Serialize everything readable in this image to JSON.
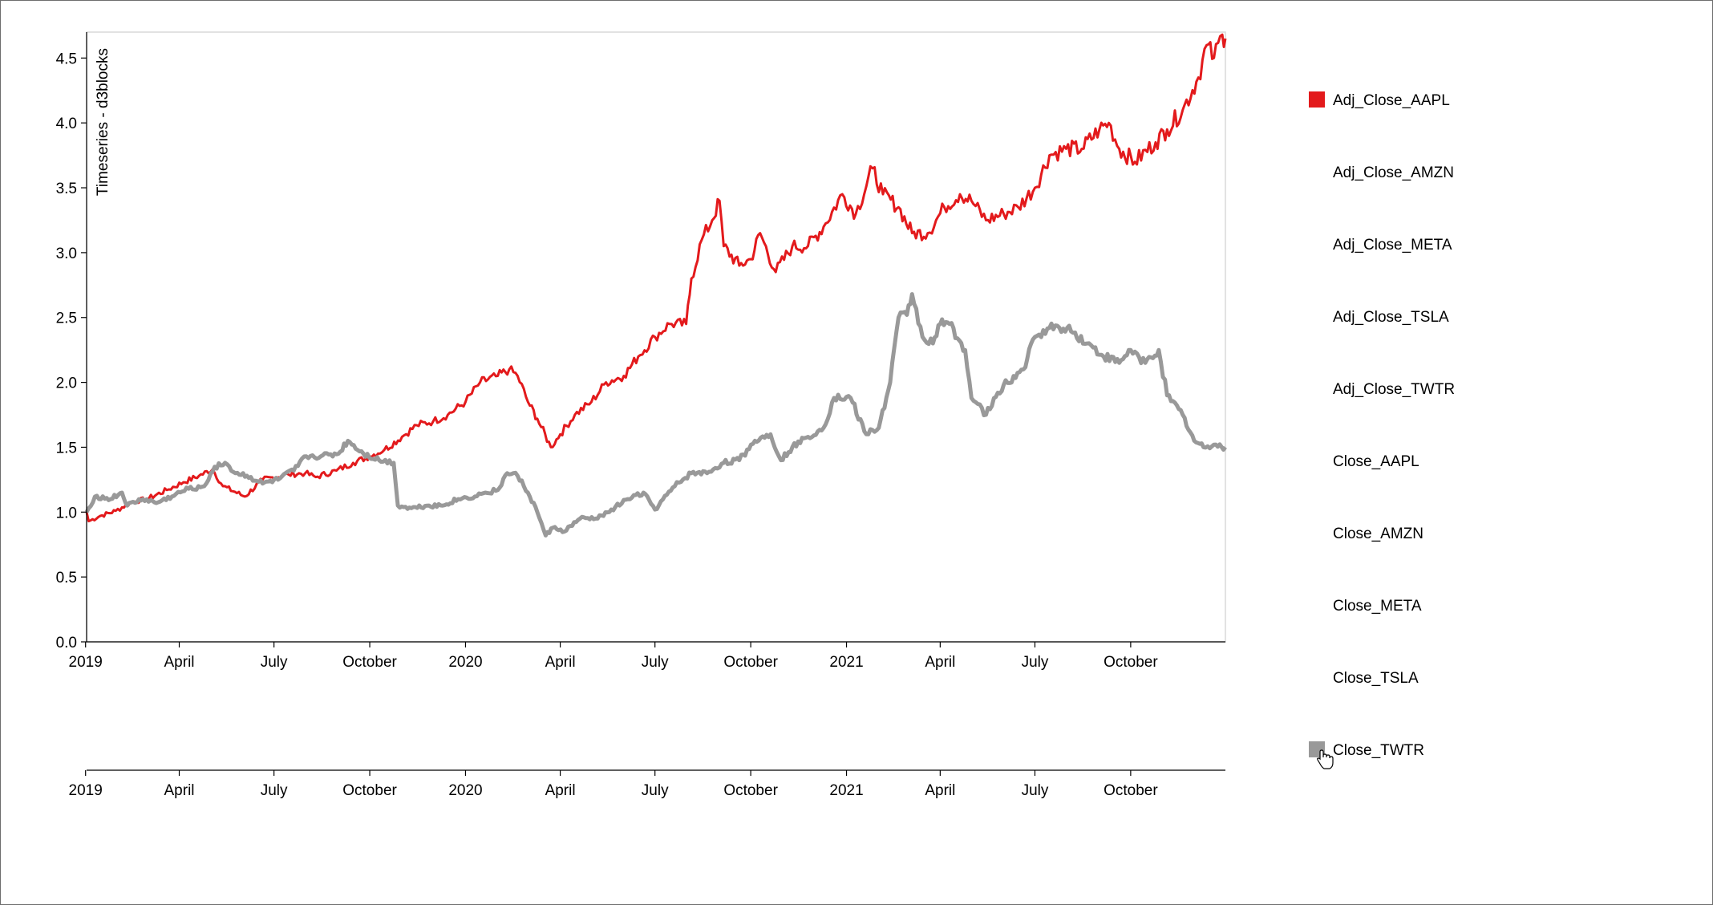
{
  "chart_data": {
    "type": "line",
    "title": "",
    "ylabel": "Timeseries - d3blocks",
    "xlabel": "",
    "x_range": [
      "2019-01-02",
      "2021-12-31"
    ],
    "ylim": [
      0,
      4.7
    ],
    "y_ticks": [
      "0.0",
      "0.5",
      "1.0",
      "1.5",
      "2.0",
      "2.5",
      "3.0",
      "3.5",
      "4.0",
      "4.5"
    ],
    "x_ticks": [
      {
        "date": "2019-01-01",
        "label": "2019"
      },
      {
        "date": "2019-04-01",
        "label": "April"
      },
      {
        "date": "2019-07-01",
        "label": "July"
      },
      {
        "date": "2019-10-01",
        "label": "October"
      },
      {
        "date": "2020-01-01",
        "label": "2020"
      },
      {
        "date": "2020-04-01",
        "label": "April"
      },
      {
        "date": "2020-07-01",
        "label": "July"
      },
      {
        "date": "2020-10-01",
        "label": "October"
      },
      {
        "date": "2021-01-01",
        "label": "2021"
      },
      {
        "date": "2021-04-01",
        "label": "April"
      },
      {
        "date": "2021-07-01",
        "label": "July"
      },
      {
        "date": "2021-10-01",
        "label": "October"
      }
    ],
    "grid": false,
    "legend_placement": "right",
    "series": [
      {
        "name": "Adj_Close_AAPL",
        "color": "#e31a1c",
        "visible": true,
        "points": [
          [
            "2019-01-02",
            1.0
          ],
          [
            "2019-01-04",
            0.93
          ],
          [
            "2019-01-15",
            0.97
          ],
          [
            "2019-01-30",
            1.01
          ],
          [
            "2019-02-15",
            1.08
          ],
          [
            "2019-03-01",
            1.1
          ],
          [
            "2019-03-20",
            1.17
          ],
          [
            "2019-04-05",
            1.23
          ],
          [
            "2019-04-20",
            1.28
          ],
          [
            "2019-05-03",
            1.33
          ],
          [
            "2019-05-13",
            1.2
          ],
          [
            "2019-06-03",
            1.12
          ],
          [
            "2019-06-20",
            1.25
          ],
          [
            "2019-07-15",
            1.29
          ],
          [
            "2019-07-31",
            1.3
          ],
          [
            "2019-08-10",
            1.27
          ],
          [
            "2019-08-30",
            1.32
          ],
          [
            "2019-09-15",
            1.38
          ],
          [
            "2019-10-01",
            1.43
          ],
          [
            "2019-10-15",
            1.48
          ],
          [
            "2019-11-01",
            1.58
          ],
          [
            "2019-11-15",
            1.67
          ],
          [
            "2019-12-01",
            1.7
          ],
          [
            "2019-12-15",
            1.75
          ],
          [
            "2020-01-01",
            1.85
          ],
          [
            "2020-01-15",
            2.0
          ],
          [
            "2020-02-01",
            2.05
          ],
          [
            "2020-02-12",
            2.1
          ],
          [
            "2020-02-20",
            2.05
          ],
          [
            "2020-03-01",
            1.85
          ],
          [
            "2020-03-10",
            1.72
          ],
          [
            "2020-03-23",
            1.5
          ],
          [
            "2020-04-01",
            1.6
          ],
          [
            "2020-04-15",
            1.75
          ],
          [
            "2020-05-01",
            1.85
          ],
          [
            "2020-05-15",
            2.0
          ],
          [
            "2020-06-01",
            2.05
          ],
          [
            "2020-06-15",
            2.2
          ],
          [
            "2020-07-01",
            2.35
          ],
          [
            "2020-07-15",
            2.45
          ],
          [
            "2020-07-31",
            2.45
          ],
          [
            "2020-08-05",
            2.8
          ],
          [
            "2020-08-15",
            3.1
          ],
          [
            "2020-08-25",
            3.25
          ],
          [
            "2020-09-01",
            3.4
          ],
          [
            "2020-09-05",
            3.05
          ],
          [
            "2020-09-20",
            2.9
          ],
          [
            "2020-10-01",
            2.95
          ],
          [
            "2020-10-10",
            3.15
          ],
          [
            "2020-10-25",
            2.85
          ],
          [
            "2020-11-10",
            3.05
          ],
          [
            "2020-11-25",
            3.05
          ],
          [
            "2020-12-10",
            3.2
          ],
          [
            "2020-12-28",
            3.45
          ],
          [
            "2021-01-10",
            3.3
          ],
          [
            "2021-01-26",
            3.65
          ],
          [
            "2021-02-05",
            3.45
          ],
          [
            "2021-02-20",
            3.35
          ],
          [
            "2021-03-05",
            3.15
          ],
          [
            "2021-03-20",
            3.15
          ],
          [
            "2021-04-05",
            3.35
          ],
          [
            "2021-04-20",
            3.45
          ],
          [
            "2021-05-01",
            3.4
          ],
          [
            "2021-05-15",
            3.25
          ],
          [
            "2021-06-01",
            3.3
          ],
          [
            "2021-06-15",
            3.35
          ],
          [
            "2021-07-01",
            3.5
          ],
          [
            "2021-07-15",
            3.75
          ],
          [
            "2021-07-31",
            3.8
          ],
          [
            "2021-08-15",
            3.8
          ],
          [
            "2021-09-01",
            3.95
          ],
          [
            "2021-09-10",
            4.0
          ],
          [
            "2021-09-20",
            3.8
          ],
          [
            "2021-10-05",
            3.7
          ],
          [
            "2021-10-25",
            3.85
          ],
          [
            "2021-11-05",
            3.95
          ],
          [
            "2021-11-20",
            4.1
          ],
          [
            "2021-12-05",
            4.35
          ],
          [
            "2021-12-13",
            4.6
          ],
          [
            "2021-12-20",
            4.5
          ],
          [
            "2021-12-28",
            4.68
          ],
          [
            "2021-12-31",
            4.65
          ]
        ]
      },
      {
        "name": "Adj_Close_AMZN",
        "color": "#1f77b4",
        "visible": false
      },
      {
        "name": "Adj_Close_META",
        "color": "#ff7f0e",
        "visible": false
      },
      {
        "name": "Adj_Close_TSLA",
        "color": "#2ca02c",
        "visible": false
      },
      {
        "name": "Adj_Close_TWTR",
        "color": "#9467bd",
        "visible": false
      },
      {
        "name": "Close_AAPL",
        "color": "#8c564b",
        "visible": false
      },
      {
        "name": "Close_AMZN",
        "color": "#e377c2",
        "visible": false
      },
      {
        "name": "Close_META",
        "color": "#bcbd22",
        "visible": false
      },
      {
        "name": "Close_TSLA",
        "color": "#17becf",
        "visible": false
      },
      {
        "name": "Close_TWTR",
        "color": "#999999",
        "visible": true,
        "points": [
          [
            "2019-01-02",
            1.0
          ],
          [
            "2019-01-10",
            1.12
          ],
          [
            "2019-01-25",
            1.1
          ],
          [
            "2019-02-05",
            1.15
          ],
          [
            "2019-02-10",
            1.05
          ],
          [
            "2019-02-25",
            1.1
          ],
          [
            "2019-03-10",
            1.07
          ],
          [
            "2019-03-25",
            1.12
          ],
          [
            "2019-04-10",
            1.18
          ],
          [
            "2019-04-25",
            1.2
          ],
          [
            "2019-05-05",
            1.35
          ],
          [
            "2019-05-15",
            1.38
          ],
          [
            "2019-05-25",
            1.3
          ],
          [
            "2019-06-05",
            1.28
          ],
          [
            "2019-06-20",
            1.22
          ],
          [
            "2019-07-05",
            1.25
          ],
          [
            "2019-07-20",
            1.32
          ],
          [
            "2019-08-01",
            1.43
          ],
          [
            "2019-08-15",
            1.43
          ],
          [
            "2019-09-01",
            1.45
          ],
          [
            "2019-09-10",
            1.55
          ],
          [
            "2019-09-25",
            1.45
          ],
          [
            "2019-10-10",
            1.4
          ],
          [
            "2019-10-24",
            1.38
          ],
          [
            "2019-10-28",
            1.05
          ],
          [
            "2019-11-10",
            1.03
          ],
          [
            "2019-11-25",
            1.05
          ],
          [
            "2019-12-10",
            1.05
          ],
          [
            "2019-12-25",
            1.1
          ],
          [
            "2020-01-10",
            1.12
          ],
          [
            "2020-01-20",
            1.15
          ],
          [
            "2020-02-01",
            1.17
          ],
          [
            "2020-02-10",
            1.3
          ],
          [
            "2020-02-20",
            1.28
          ],
          [
            "2020-03-01",
            1.15
          ],
          [
            "2020-03-10",
            1.0
          ],
          [
            "2020-03-18",
            0.82
          ],
          [
            "2020-03-25",
            0.88
          ],
          [
            "2020-04-05",
            0.85
          ],
          [
            "2020-04-20",
            0.95
          ],
          [
            "2020-05-05",
            0.95
          ],
          [
            "2020-05-20",
            1.02
          ],
          [
            "2020-06-05",
            1.1
          ],
          [
            "2020-06-20",
            1.15
          ],
          [
            "2020-07-01",
            1.02
          ],
          [
            "2020-07-20",
            1.2
          ],
          [
            "2020-08-05",
            1.3
          ],
          [
            "2020-08-20",
            1.3
          ],
          [
            "2020-09-05",
            1.38
          ],
          [
            "2020-09-20",
            1.4
          ],
          [
            "2020-10-05",
            1.55
          ],
          [
            "2020-10-20",
            1.6
          ],
          [
            "2020-10-30",
            1.4
          ],
          [
            "2020-11-10",
            1.5
          ],
          [
            "2020-11-25",
            1.58
          ],
          [
            "2020-12-10",
            1.65
          ],
          [
            "2020-12-20",
            1.88
          ],
          [
            "2021-01-05",
            1.88
          ],
          [
            "2021-01-20",
            1.6
          ],
          [
            "2021-02-01",
            1.65
          ],
          [
            "2021-02-12",
            2.0
          ],
          [
            "2021-02-20",
            2.5
          ],
          [
            "2021-02-28",
            2.52
          ],
          [
            "2021-03-05",
            2.68
          ],
          [
            "2021-03-15",
            2.35
          ],
          [
            "2021-03-25",
            2.3
          ],
          [
            "2021-04-01",
            2.45
          ],
          [
            "2021-04-10",
            2.45
          ],
          [
            "2021-04-25",
            2.25
          ],
          [
            "2021-05-01",
            1.88
          ],
          [
            "2021-05-15",
            1.75
          ],
          [
            "2021-06-01",
            1.98
          ],
          [
            "2021-06-20",
            2.1
          ],
          [
            "2021-07-01",
            2.35
          ],
          [
            "2021-07-15",
            2.42
          ],
          [
            "2021-08-01",
            2.42
          ],
          [
            "2021-08-20",
            2.3
          ],
          [
            "2021-09-05",
            2.2
          ],
          [
            "2021-09-20",
            2.15
          ],
          [
            "2021-10-01",
            2.25
          ],
          [
            "2021-10-15",
            2.15
          ],
          [
            "2021-10-28",
            2.25
          ],
          [
            "2021-11-05",
            1.9
          ],
          [
            "2021-11-20",
            1.75
          ],
          [
            "2021-12-01",
            1.55
          ],
          [
            "2021-12-10",
            1.5
          ],
          [
            "2021-12-20",
            1.52
          ],
          [
            "2021-12-31",
            1.5
          ]
        ]
      }
    ]
  }
}
